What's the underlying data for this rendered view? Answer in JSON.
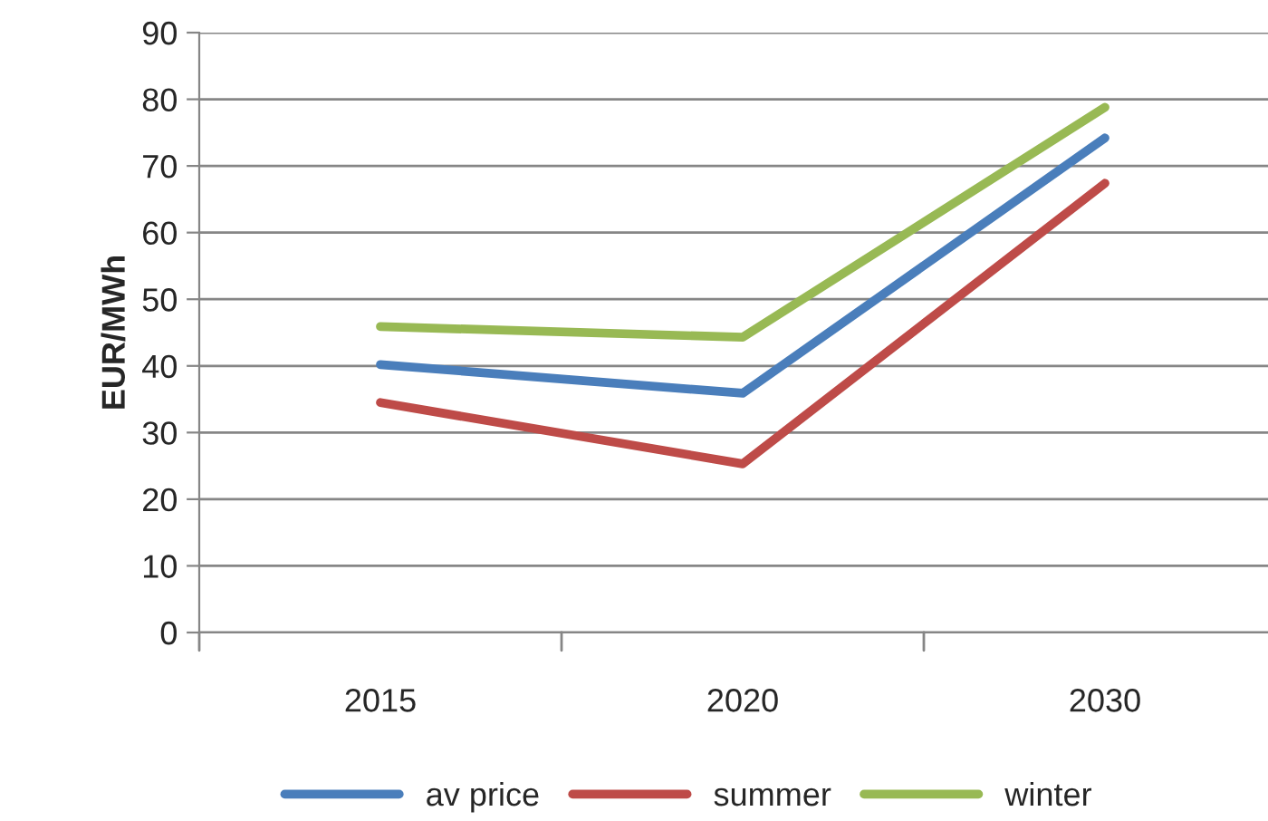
{
  "chart_data": {
    "type": "line",
    "ylabel": "EUR/MWh",
    "categories": [
      "2015",
      "2020",
      "2030"
    ],
    "series": [
      {
        "name": "av price",
        "color": "#4a7ebb",
        "values": [
          40.2,
          35.9,
          74.2
        ]
      },
      {
        "name": "summer",
        "color": "#be4b48",
        "values": [
          34.5,
          25.3,
          67.4
        ]
      },
      {
        "name": "winter",
        "color": "#98b954",
        "values": [
          45.9,
          44.3,
          78.8
        ]
      }
    ],
    "ylim": [
      0,
      90
    ],
    "yticks": [
      0,
      10,
      20,
      30,
      40,
      50,
      60,
      70,
      80,
      90
    ],
    "grid": "y",
    "legend": "bottom",
    "marker": "none",
    "line_style": "solid"
  }
}
